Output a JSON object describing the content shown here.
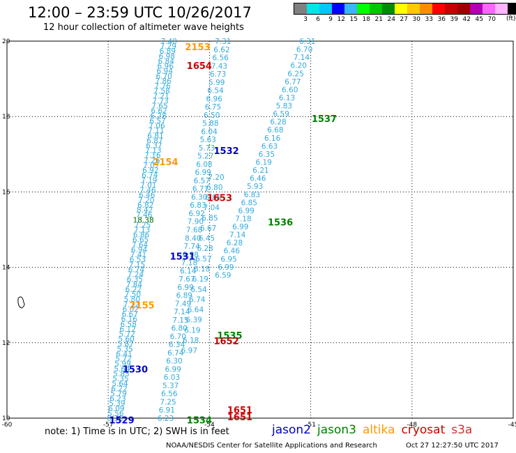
{
  "header": {
    "title": "12:00 – 23:59 UTC 10/26/2017",
    "subtitle": "12 hour collection of altimeter wave heights"
  },
  "color_scale": {
    "unit": "(ft)",
    "colors": [
      "#808080",
      "#00e6e6",
      "#00c8ff",
      "#0000ff",
      "#3cb4ff",
      "#00ff00",
      "#00c800",
      "#008c00",
      "#ffff00",
      "#ffc800",
      "#ff8c00",
      "#ff0000",
      "#c80000",
      "#a00000",
      "#b400b4",
      "#ff64ff",
      "#ffb4ff",
      "#000000"
    ],
    "labels": [
      "3",
      "6",
      "9",
      "12",
      "15",
      "18",
      "21",
      "24",
      "27",
      "30",
      "33",
      "36",
      "39",
      "42",
      "45",
      "70"
    ]
  },
  "map": {
    "lon_ticks": [
      "-60",
      "-57",
      "-54",
      "-51",
      "-48",
      "-45"
    ],
    "lat_ticks": [
      "20",
      "18",
      "16",
      "14",
      "12",
      "10"
    ],
    "colors": {
      "jason2": "#0000cc",
      "jason3": "#008000",
      "altika": "#ff9900",
      "cryosat": "#cc0000",
      "s3a": "#cc3333",
      "swh": "#33aadd",
      "swh_jason3": "#006600"
    },
    "pass_labels": [
      {
        "text": "2153",
        "sat": "altika",
        "lon": -54.35,
        "lat": 19.85
      },
      {
        "text": "1654",
        "sat": "cryosat",
        "lon": -54.3,
        "lat": 19.35
      },
      {
        "text": "1537",
        "sat": "jason3",
        "lon": -50.6,
        "lat": 17.95
      },
      {
        "text": "1532",
        "sat": "jason2",
        "lon": -53.5,
        "lat": 17.1
      },
      {
        "text": "2154",
        "sat": "altika",
        "lon": -55.3,
        "lat": 16.8
      },
      {
        "text": "1653",
        "sat": "cryosat",
        "lon": -53.7,
        "lat": 15.85
      },
      {
        "text": "1536",
        "sat": "jason3",
        "lon": -51.9,
        "lat": 15.2
      },
      {
        "text": "1531",
        "sat": "jason2",
        "lon": -54.8,
        "lat": 14.3
      },
      {
        "text": "2155",
        "sat": "altika",
        "lon": -56.0,
        "lat": 13.0
      },
      {
        "text": "1535",
        "sat": "jason3",
        "lon": -53.4,
        "lat": 12.2
      },
      {
        "text": "1652",
        "sat": "cryosat",
        "lon": -53.5,
        "lat": 12.05
      },
      {
        "text": "1530",
        "sat": "jason2",
        "lon": -56.2,
        "lat": 11.3
      },
      {
        "text": "1651",
        "sat": "cryosat",
        "lon": -53.1,
        "lat": 10.22
      },
      {
        "text": "1651",
        "sat": "cryosat",
        "lon": -53.1,
        "lat": 10.04
      },
      {
        "text": "1529",
        "sat": "jason2",
        "lon": -56.6,
        "lat": 9.95
      },
      {
        "text": "1534",
        "sat": "jason3",
        "lon": -54.3,
        "lat": 9.95
      }
    ],
    "tracks": [
      {
        "name": "track-1654",
        "lon0": -55.2,
        "lat0": 20,
        "lon1": -56.8,
        "lat1": 10,
        "values": [
          "7.40",
          "7.29",
          "6.89",
          "6.98",
          "6.84",
          "6.96",
          "6.94",
          "6.70",
          "7.86",
          "7.76",
          "7.58",
          "7.21",
          "7.73",
          "7.65",
          "6.62",
          "6.28",
          "6.57",
          "7.06",
          "7.11",
          "6.81",
          "6.87",
          "6.37",
          "7.13",
          "7.16",
          "7.26",
          "7.07",
          "6.92",
          "6.74",
          "7.19",
          "7.01",
          "7.46",
          "6.46",
          "7.20",
          "6.82",
          "8.42",
          "7.46",
          "18.38",
          "7.25",
          "7.13",
          "6.86",
          "6.65",
          "7.64",
          "6.94",
          "7.41",
          "6.53",
          "7.15",
          "6.74",
          "7.24",
          "6.35",
          "7.84",
          "6.22",
          "7.50",
          "5.80",
          "7.32",
          "6.02",
          "6.67",
          "6.16",
          "6.58",
          "6.12",
          "5.72",
          "5.60",
          "5.87",
          "5.35",
          "6.41",
          "5.72",
          "5.99",
          "5.64",
          "5.83",
          "5.35",
          "5.64",
          "6.22",
          "5.79",
          "6.23",
          "5.39",
          "6.09",
          "5.56",
          "6.30"
        ]
      },
      {
        "name": "track-1653",
        "lon0": -53.6,
        "lat0": 20,
        "lon1": -55.3,
        "lat1": 10,
        "values": [
          "7.31",
          "6.62",
          "6.56",
          "7.43",
          "6.73",
          "5.99",
          "6.54",
          "6.96",
          "6.75",
          "6.50",
          "5.88",
          "6.04",
          "5.63",
          "5.73",
          "5.27",
          "6.08",
          "6.99",
          "6.57",
          "6.71",
          "6.30",
          "6.83",
          "6.92",
          "7.90",
          "7.68",
          "8.40",
          "7.74",
          "6.98",
          "7.18",
          "6.14",
          "7.67",
          "6.99",
          "6.89",
          "7.49",
          "7.14",
          "7.15",
          "6.80",
          "6.70",
          "6.34",
          "6.74",
          "6.30",
          "6.99",
          "6.03",
          "5.37",
          "6.56",
          "7.25",
          "6.91",
          "6.23"
        ]
      },
      {
        "name": "track-1652",
        "lon0": -53.8,
        "lat0": 16.4,
        "lon1": -54.6,
        "lat1": 11.8,
        "values": [
          "7.20",
          "6.80",
          "6.85",
          "7.04",
          "6.85",
          "6.67",
          "6.45",
          "6.28",
          "6.57",
          "6.18",
          "6.19",
          "6.54",
          "6.74",
          "6.64",
          "6.39",
          "6.19",
          "6.18",
          "6.97"
        ]
      },
      {
        "name": "track-1537",
        "lon0": -51.1,
        "lat0": 20,
        "lon1": -53.6,
        "lat1": 13.8,
        "values": [
          "6.31",
          "6.70",
          "7.14",
          "6.20",
          "6.25",
          "6.77",
          "6.60",
          "6.13",
          "5.83",
          "6.59",
          "6.28",
          "6.68",
          "6.16",
          "6.63",
          "6.35",
          "6.19",
          "6.21",
          "6.46",
          "5.93",
          "6.83",
          "6.85",
          "6.99",
          "7.18",
          "6.99",
          "7.14",
          "6.28",
          "6.46",
          "6.95",
          "6.99",
          "6.59"
        ]
      }
    ]
  },
  "footer": {
    "note": "note: 1) Time is in UTC; 2) SWH is in feet",
    "legend": [
      {
        "label": "jason2",
        "color": "#0000cc"
      },
      {
        "label": "jason3",
        "color": "#008000"
      },
      {
        "label": "altika",
        "color": "#ff9900"
      },
      {
        "label": "cryosat",
        "color": "#cc0000"
      },
      {
        "label": "s3a",
        "color": "#cc3333"
      }
    ],
    "credit": "NOAA/NESDIS Center for Satellite Applications and Research",
    "stamp": "Oct 27 12:27:50 UTC 2017"
  }
}
